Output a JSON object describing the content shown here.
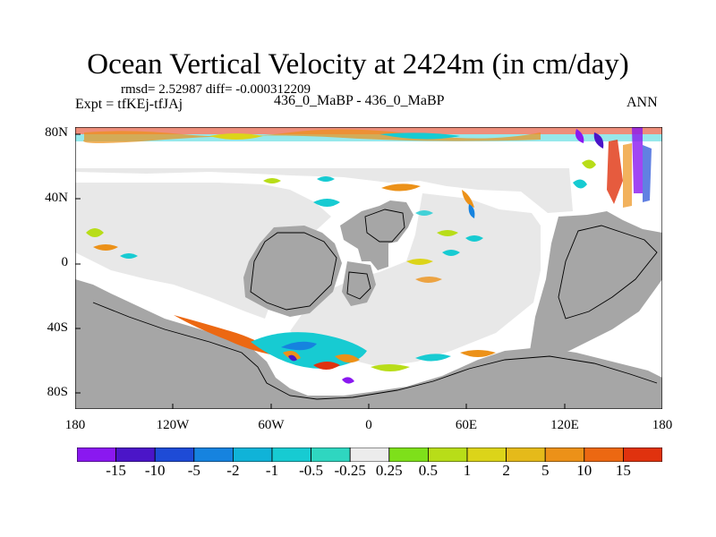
{
  "title": "Ocean Vertical Velocity at 2424m (in cm/day)",
  "stats": "rmsd= 2.52987 diff= -0.000312209",
  "experiment": "Expt = tfKEj-tfJAj",
  "runs": "436_0_MaBP - 436_0_MaBP",
  "season": "ANN",
  "axes": {
    "y_ticks": [
      "80N",
      "40N",
      "0",
      "40S",
      "80S"
    ],
    "x_ticks": [
      "180",
      "120W",
      "60W",
      "0",
      "60E",
      "120E",
      "180"
    ]
  },
  "colorbar": {
    "labels": [
      "-15",
      "-10",
      "-5",
      "-2",
      "-1",
      "-0.5",
      "-0.25",
      "0.25",
      "0.5",
      "1",
      "2",
      "5",
      "10",
      "15"
    ],
    "colors": [
      "#8a18f0",
      "#4b15c8",
      "#1e4bd6",
      "#1683df",
      "#10b3d8",
      "#17cbd2",
      "#2fd6c0",
      "#ececec",
      "#7ee01a",
      "#b8dd18",
      "#dcd419",
      "#e5ba1a",
      "#ec9118",
      "#ec6812",
      "#e0320e"
    ]
  },
  "map_colors": {
    "land": "#a6a6a6",
    "zero_band": "#ececec"
  }
}
